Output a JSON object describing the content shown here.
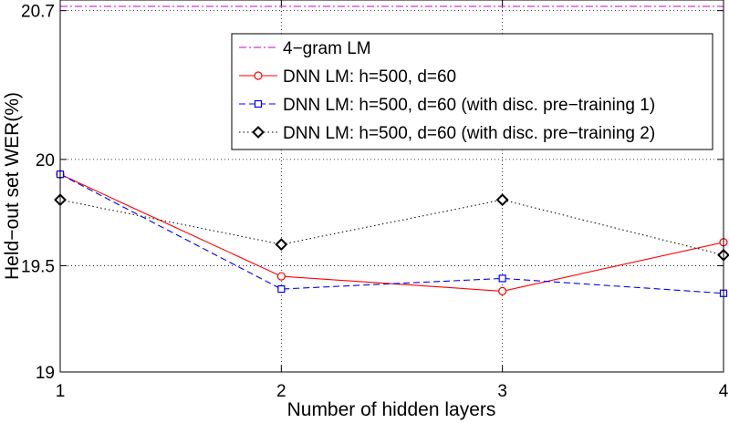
{
  "chart_data": {
    "type": "line",
    "title": "",
    "xlabel": "Number of hidden layers",
    "ylabel": "Held−out set WER(%)",
    "x": [
      1,
      2,
      3,
      4
    ],
    "xlim": [
      1,
      4
    ],
    "ylim": [
      19,
      20.75
    ],
    "xticks": [
      "1",
      "2",
      "3",
      "4"
    ],
    "yticks": [
      {
        "value": 19,
        "label": "19"
      },
      {
        "value": 19.5,
        "label": "19.5"
      },
      {
        "value": 20,
        "label": "20"
      },
      {
        "value": 20.7,
        "label": "20.7"
      }
    ],
    "grid": true,
    "legend_position": "top-right",
    "series": [
      {
        "name": "4−gram LM",
        "values": [
          20.72,
          20.72,
          20.72,
          20.72
        ],
        "color": "#cc00cc",
        "line_style": "dashdot",
        "marker": "none",
        "span": "full"
      },
      {
        "name": "DNN LM: h=500, d=60",
        "values": [
          19.93,
          19.45,
          19.38,
          19.61
        ],
        "color": "#ff0000",
        "line_style": "solid",
        "marker": "circle"
      },
      {
        "name": "DNN LM: h=500, d=60 (with disc. pre−training 1)",
        "values": [
          19.93,
          19.39,
          19.44,
          19.37
        ],
        "color": "#0000ff",
        "line_style": "dashed",
        "marker": "square"
      },
      {
        "name": "DNN LM: h=500, d=60 (with disc. pre−training 2)",
        "values": [
          19.81,
          19.6,
          19.81,
          19.55
        ],
        "color": "#000000",
        "line_style": "dotted",
        "marker": "diamond"
      }
    ]
  }
}
